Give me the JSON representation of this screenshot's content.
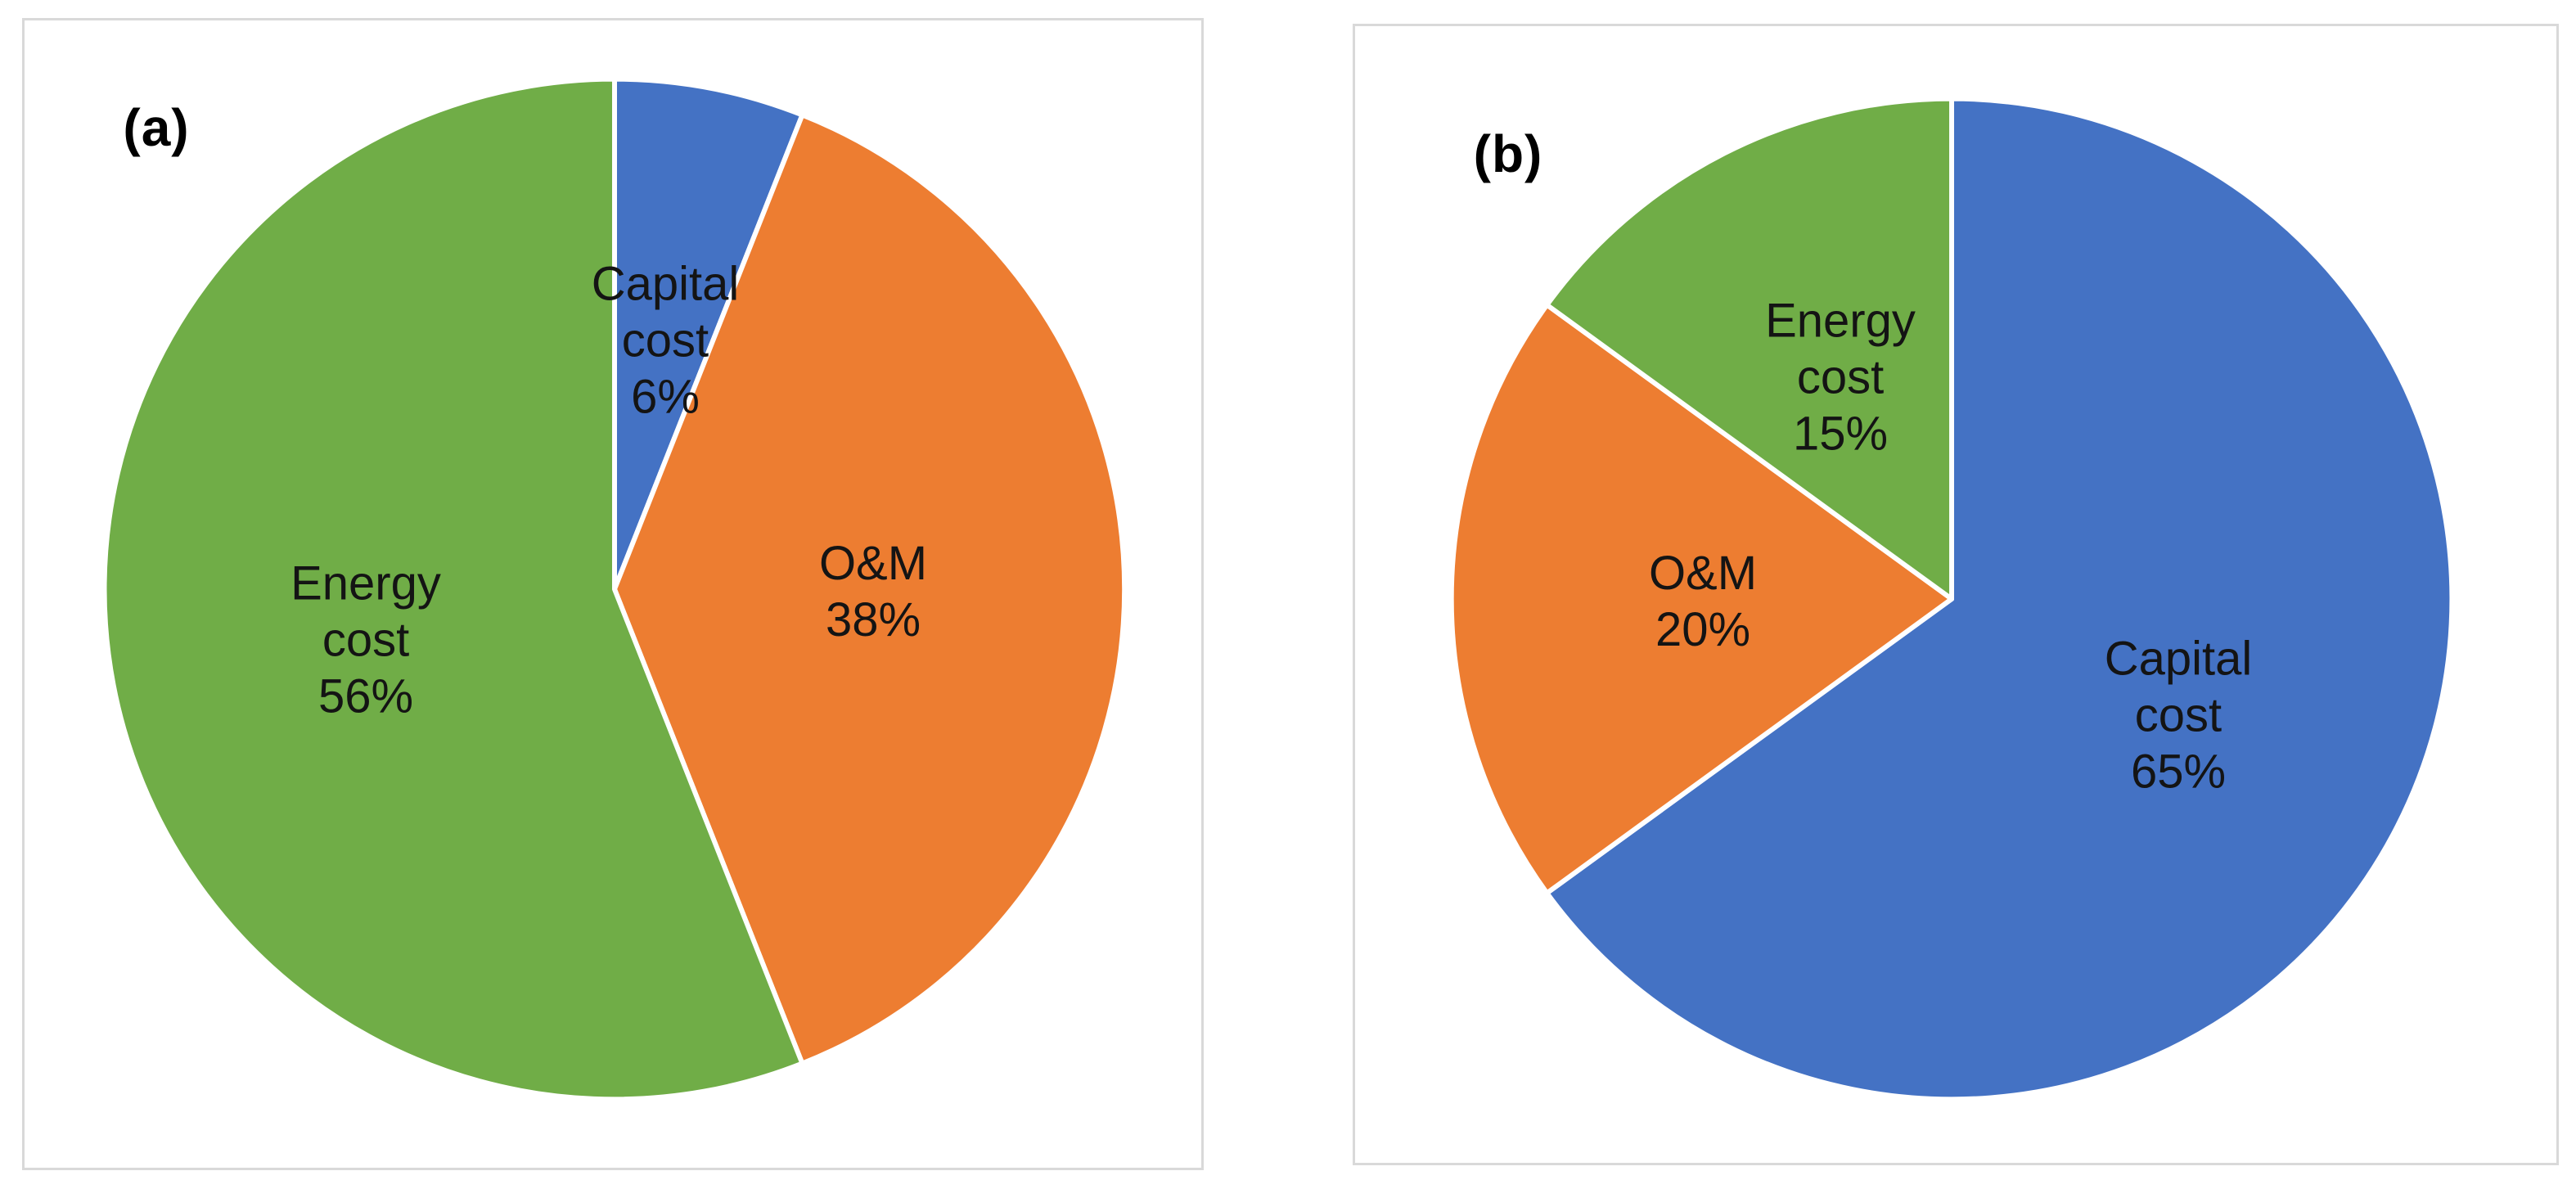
{
  "figure": {
    "background_color": "#ffffff",
    "panel_border_color": "#d9d9d9",
    "label_text_color": "#141414",
    "slice_separator_color": "#ffffff"
  },
  "chart_data": [
    {
      "type": "pie",
      "panel_label": "(a)",
      "categories": [
        "Capital cost",
        "O&M",
        "Energy cost"
      ],
      "values": [
        6,
        38,
        56
      ],
      "unit": "%",
      "colors": [
        "#4472C4",
        "#ED7D31",
        "#70AD47"
      ],
      "slice_labels": [
        [
          "Capital",
          "cost",
          "6%"
        ],
        [
          "O&M",
          "38%"
        ],
        [
          "Energy",
          "cost",
          "56%"
        ]
      ],
      "start_angle_deg": 0,
      "direction": "clockwise",
      "legend": "none"
    },
    {
      "type": "pie",
      "panel_label": "(b)",
      "categories": [
        "Capital cost",
        "O&M",
        "Energy cost"
      ],
      "values": [
        65,
        20,
        15
      ],
      "unit": "%",
      "colors": [
        "#4472C4",
        "#ED7D31",
        "#70AD47"
      ],
      "slice_labels": [
        [
          "Capital",
          "cost",
          "65%"
        ],
        [
          "O&M",
          "20%"
        ],
        [
          "Energy",
          "cost",
          "15%"
        ]
      ],
      "start_angle_deg": 0,
      "direction": "clockwise",
      "legend": "none"
    }
  ]
}
